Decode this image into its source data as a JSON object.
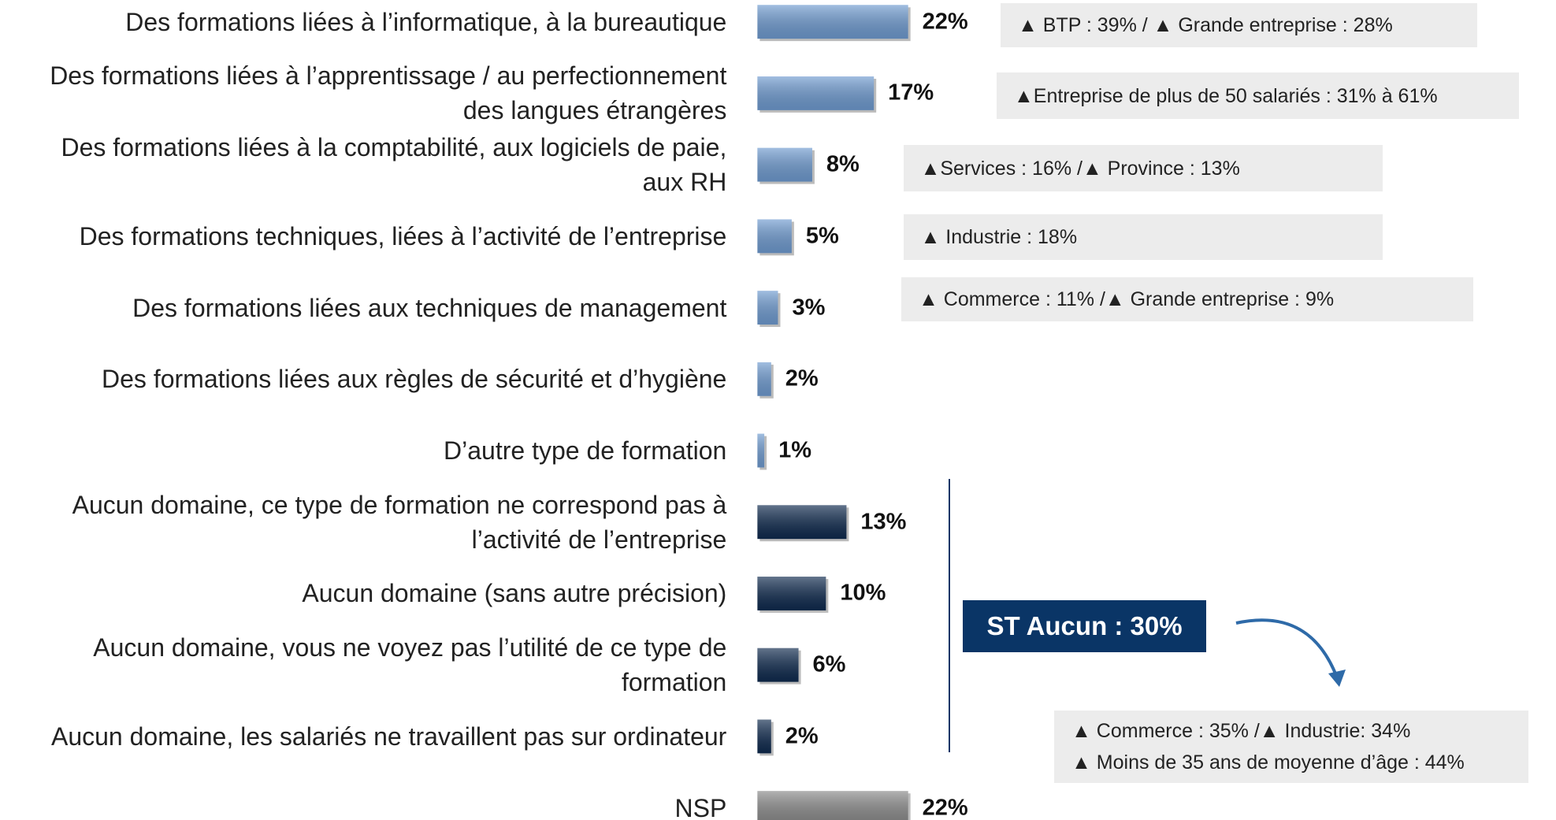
{
  "chart_data": {
    "type": "bar",
    "categories": [
      "Des formations liées à l’informatique, à la bureautique",
      "Des formations liées à l’apprentissage / au perfectionnement\ndes langues étrangères",
      "Des formations liées à la comptabilité, aux logiciels de paie,\naux RH",
      "Des formations techniques, liées à l’activité de l’entreprise",
      "Des formations liées aux techniques de management",
      "Des formations liées aux règles de sécurité et d’hygiène",
      "D’autre type de formation",
      "Aucun domaine, ce type de formation ne correspond pas à\nl’activité de l’entreprise",
      "Aucun domaine (sans autre précision)",
      "Aucun domaine, vous ne voyez pas l’utilité de ce type de\nformation",
      "Aucun domaine, les salariés ne travaillent pas sur ordinateur",
      "NSP"
    ],
    "values": [
      22,
      17,
      8,
      5,
      3,
      2,
      1,
      13,
      10,
      6,
      2,
      22
    ],
    "value_labels": [
      "22%",
      "17%",
      "8%",
      "5%",
      "3%",
      "2%",
      "1%",
      "13%",
      "10%",
      "6%",
      "2%",
      "22%"
    ],
    "colors": [
      "#6f9bd0",
      "#6f9bd0",
      "#6f9bd0",
      "#6f9bd0",
      "#6f9bd0",
      "#6f9bd0",
      "#6f9bd0",
      "#0f2a4e",
      "#0f2a4e",
      "#0f2a4e",
      "#0f2a4e",
      "#8a8a8a"
    ],
    "annotations": [
      "▲ BTP : 39% / ▲ Grande entreprise : 28%",
      "▲Entreprise de plus de 50 salariés : 31% à 61%",
      "▲Services : 16% /▲ Province : 13%",
      "▲ Industrie : 18%",
      "▲ Commerce : 11% /▲ Grande entreprise : 9%",
      "▲ Commerce : 35% /▲ Industrie: 34%\n▲ Moins de 35 ans de moyenne d’âge : 44%"
    ],
    "summary": "ST Aucun : 30%"
  }
}
